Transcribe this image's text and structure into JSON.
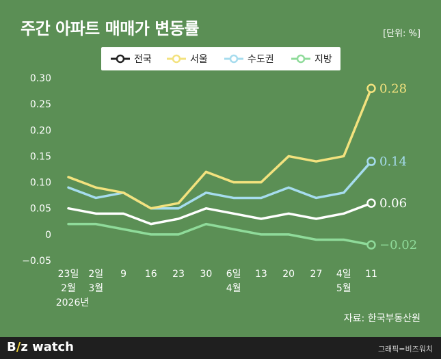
{
  "header": {
    "title": "주간 아파트 매매가 변동률",
    "unit": "[단위: %]"
  },
  "source": "자료: 한국부동산원",
  "footer": {
    "brand_left": "B",
    "brand_slash": "/",
    "brand_z": "z",
    "brand_right": "watch",
    "credit": "그래픽=비즈워치"
  },
  "chart_data": {
    "type": "line",
    "categories": [
      "23일",
      "2일",
      "9",
      "16",
      "23",
      "30",
      "6일",
      "13",
      "20",
      "27",
      "4일",
      "11"
    ],
    "category_sublabels": [
      "2월",
      "3월",
      "",
      "",
      "",
      "",
      "4월",
      "",
      "",
      "",
      "5월",
      ""
    ],
    "year_label": "2026년",
    "ylim": [
      -0.05,
      0.3
    ],
    "yticks": [
      {
        "v": 0.3,
        "label": "0.30"
      },
      {
        "v": 0.25,
        "label": "0.25"
      },
      {
        "v": 0.2,
        "label": "0.20"
      },
      {
        "v": 0.15,
        "label": "0.15"
      },
      {
        "v": 0.1,
        "label": "0.10"
      },
      {
        "v": 0.05,
        "label": "0.05"
      },
      {
        "v": 0,
        "label": "0"
      },
      {
        "v": -0.05,
        "label": "−0.05"
      }
    ],
    "legend_placement": "top",
    "series": [
      {
        "name": "지방",
        "color": "#8fdb9a",
        "values": [
          0.02,
          0.02,
          0.01,
          0.0,
          0.0,
          0.02,
          0.01,
          0.0,
          0.0,
          -0.01,
          -0.01,
          -0.02
        ],
        "end_label": "−0.02"
      },
      {
        "name": "전국",
        "color": "#ffffff",
        "values": [
          0.05,
          0.04,
          0.04,
          0.02,
          0.03,
          0.05,
          0.04,
          0.03,
          0.04,
          0.03,
          0.04,
          0.06
        ],
        "end_label": "0.06"
      },
      {
        "name": "수도권",
        "color": "#a6dcee",
        "values": [
          0.09,
          0.07,
          0.08,
          0.05,
          0.05,
          0.08,
          0.07,
          0.07,
          0.09,
          0.07,
          0.08,
          0.14
        ],
        "end_label": "0.14"
      },
      {
        "name": "서울",
        "color": "#f3e27e",
        "values": [
          0.11,
          0.09,
          0.08,
          0.05,
          0.06,
          0.12,
          0.1,
          0.1,
          0.15,
          0.14,
          0.15,
          0.28
        ],
        "end_label": "0.28"
      }
    ],
    "legend_order": [
      "전국",
      "서울",
      "수도권",
      "지방"
    ]
  }
}
